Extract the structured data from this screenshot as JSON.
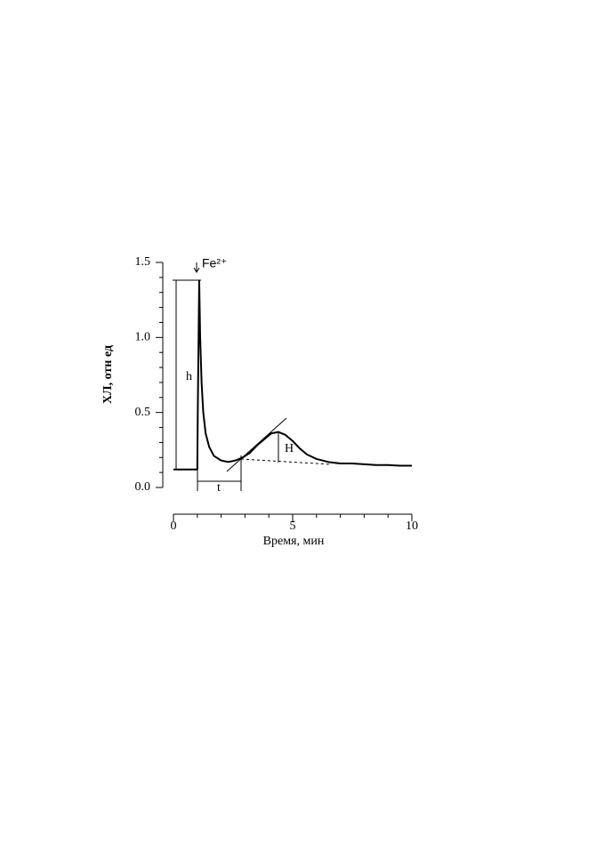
{
  "chart_data": {
    "type": "line",
    "x_label": "Время, мин",
    "y_label": "ХЛ, отн ед",
    "annotations": [
      "Fe²⁺",
      "h",
      "t",
      "H"
    ],
    "x": [
      0,
      0.2,
      0.5,
      0.8,
      1.0,
      1.02,
      1.08,
      1.12,
      1.18,
      1.25,
      1.35,
      1.5,
      1.7,
      2.0,
      2.3,
      2.6,
      2.9,
      3.2,
      3.5,
      3.8,
      4.1,
      4.4,
      4.7,
      5.0,
      5.3,
      5.6,
      6.0,
      6.5,
      7.0,
      7.5,
      8.0,
      8.5,
      9.0,
      9.5,
      10.0
    ],
    "series": [
      {
        "color": "#000000",
        "values": [
          0.12,
          0.12,
          0.12,
          0.12,
          0.12,
          0.5,
          1.38,
          1.0,
          0.7,
          0.5,
          0.36,
          0.27,
          0.21,
          0.18,
          0.17,
          0.18,
          0.2,
          0.23,
          0.28,
          0.32,
          0.36,
          0.37,
          0.35,
          0.31,
          0.26,
          0.22,
          0.19,
          0.17,
          0.16,
          0.16,
          0.155,
          0.15,
          0.15,
          0.145,
          0.145
        ]
      }
    ],
    "xlim": [
      0,
      10
    ],
    "xticks": [
      0,
      5,
      10
    ],
    "minor_xticks": [
      1,
      2,
      3,
      4,
      6,
      7,
      8,
      9
    ],
    "ylim": [
      0,
      1.5
    ],
    "yticks": [
      {
        "value": 0,
        "label": "0.0"
      },
      0.5,
      {
        "value": 1,
        "label": "1.0"
      },
      1.5
    ],
    "minor_yticks": [
      0.1,
      0.2,
      0.3,
      0.4,
      0.6,
      0.7,
      0.8,
      0.9,
      1.1,
      1.2,
      1.3,
      1.4
    ],
    "grid": false
  }
}
